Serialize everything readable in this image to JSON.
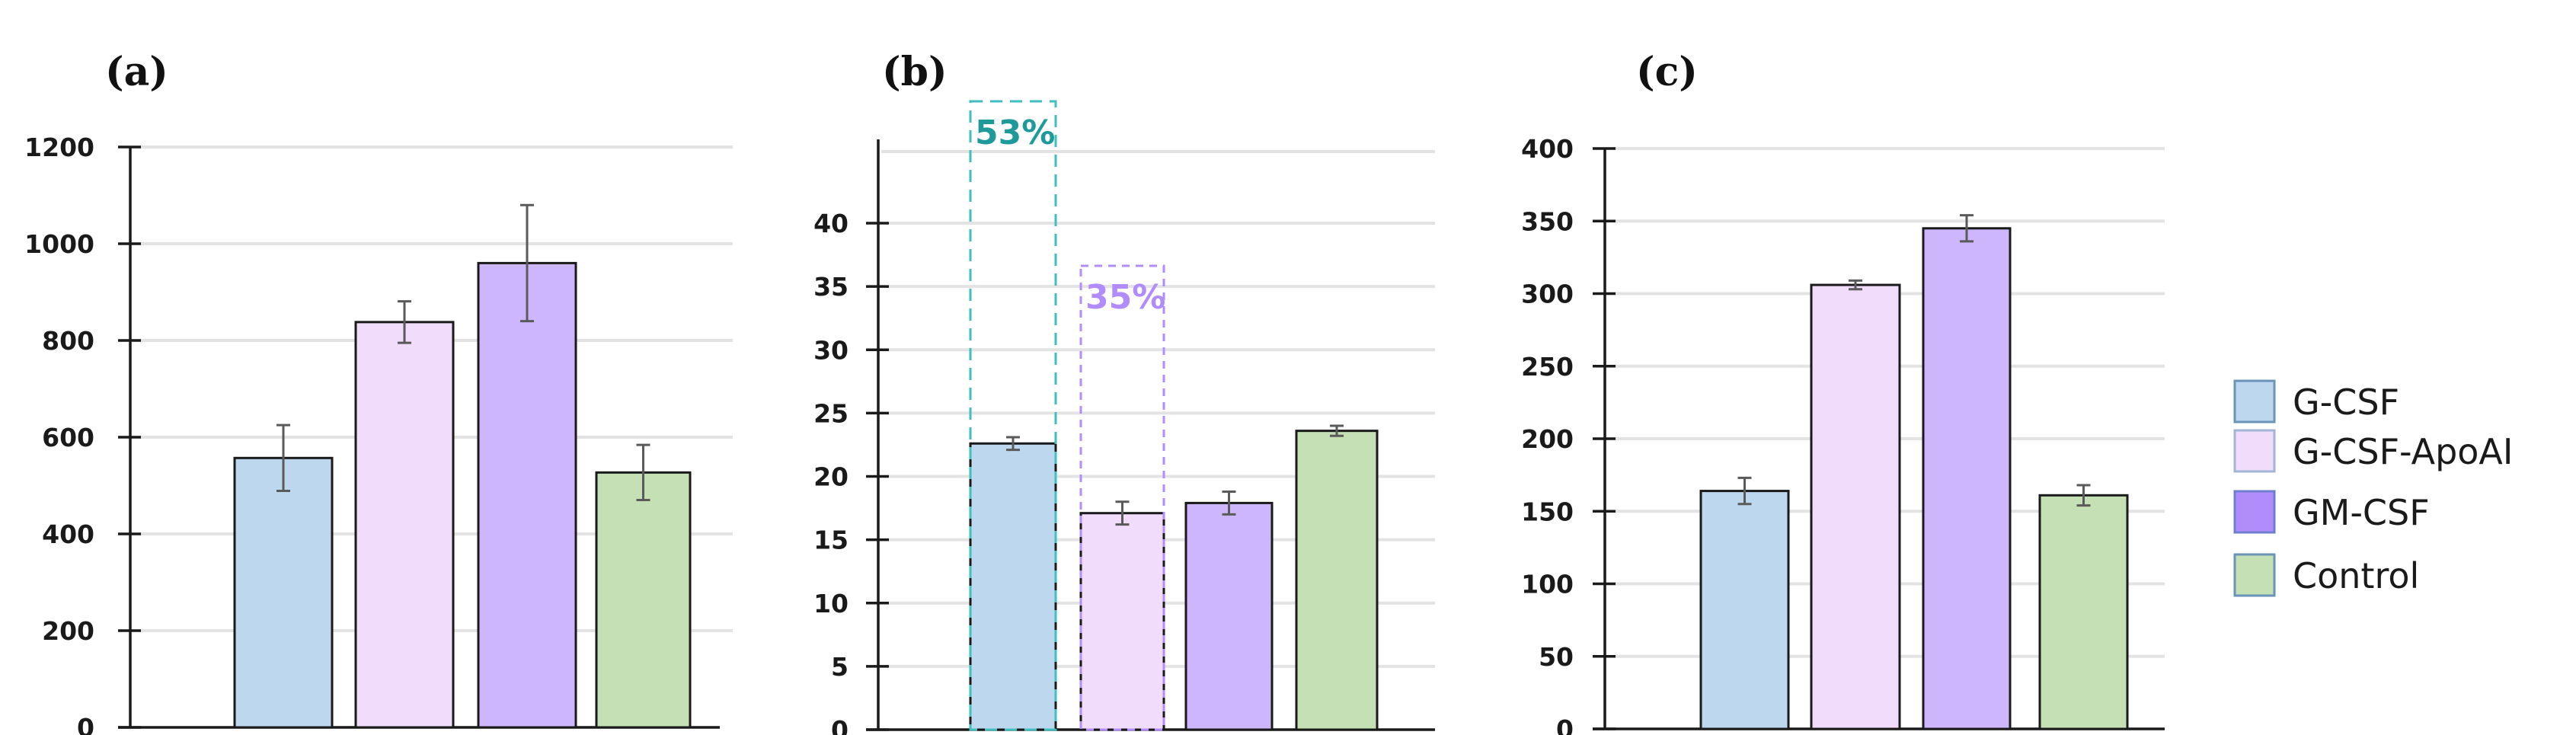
{
  "chart_data": [
    {
      "type": "bar",
      "panel": "(a)",
      "title": "",
      "xlabel": "",
      "ylabel": "",
      "ylim": [
        0,
        1200
      ],
      "yticks": [
        0,
        200,
        400,
        600,
        800,
        1000,
        1200
      ],
      "grid": true,
      "categories": [
        "G-CSF",
        "G-CSF-ApoAI",
        "GM-CSF",
        "Control"
      ],
      "values": [
        557,
        838,
        960,
        527
      ],
      "errors": [
        68,
        43,
        120,
        57
      ],
      "annotations": []
    },
    {
      "type": "bar",
      "panel": "(b)",
      "title": "",
      "xlabel": "",
      "ylabel": "",
      "ylim": [
        0,
        46
      ],
      "yticks": [
        0,
        5,
        10,
        15,
        20,
        25,
        30,
        35,
        40
      ],
      "grid": true,
      "categories": [
        "G-CSF",
        "G-CSF-ApoAI",
        "GM-CSF",
        "Control"
      ],
      "values": [
        22.6,
        17.1,
        17.9,
        23.6
      ],
      "errors": [
        0.5,
        0.9,
        0.9,
        0.4
      ],
      "annotations": [
        {
          "text": "53%",
          "bar": 0,
          "color": "#1f9a9a",
          "box_color": "#3fbfbf"
        },
        {
          "text": "35%",
          "bar": 1,
          "color": "#b18cff",
          "box_color": "#b18cff"
        }
      ]
    },
    {
      "type": "bar",
      "panel": "(c)",
      "title": "",
      "xlabel": "",
      "ylabel": "",
      "ylim": [
        0,
        400
      ],
      "yticks": [
        0,
        50,
        100,
        150,
        200,
        250,
        300,
        350,
        400
      ],
      "grid": true,
      "categories": [
        "G-CSF",
        "G-CSF-ApoAI",
        "GM-CSF",
        "Control"
      ],
      "values": [
        164,
        306,
        345,
        161
      ],
      "errors": [
        9,
        3,
        9,
        7
      ],
      "annotations": []
    }
  ],
  "legend": {
    "position": "right",
    "items": [
      {
        "label": "G-CSF",
        "color": "#bdd7ee",
        "border": "#6a93b8"
      },
      {
        "label": "G-CSF-ApoAI",
        "color": "#f2dcfb",
        "border": "#a3b4d6"
      },
      {
        "label": "GM-CSF",
        "color": "#b18cfb",
        "border": "#6f7fd0"
      },
      {
        "label": "Control",
        "color": "#c5e0b4",
        "border": "#6a93b8"
      }
    ]
  },
  "colors": {
    "bars": [
      "#bdd7ee",
      "#f2dcfb",
      "#cdb6fc",
      "#c5e0b4"
    ],
    "bar_border": "#1a1a1a",
    "grid": "#e3e3e3",
    "axis": "#1a1a1a",
    "error_bar": "#5a5a5a"
  }
}
